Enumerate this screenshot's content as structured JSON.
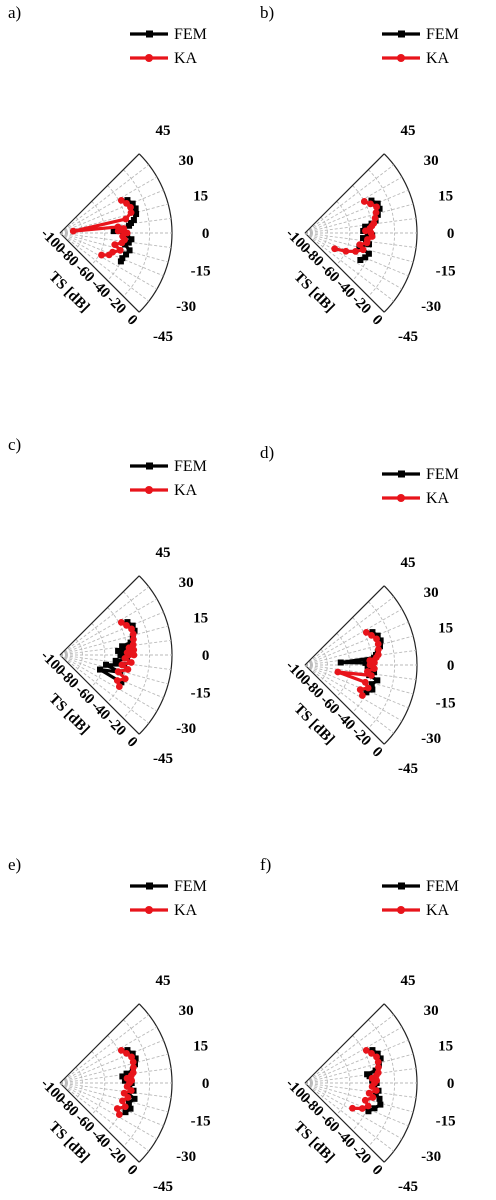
{
  "figure": {
    "panels": [
      {
        "label": "a)"
      },
      {
        "label": "b)"
      },
      {
        "label": "c)"
      },
      {
        "label": "d)"
      },
      {
        "label": "e)"
      },
      {
        "label": "f)"
      }
    ]
  },
  "chart_data": {
    "type": "polar-line",
    "radial_axis": {
      "label": "TS [dB]",
      "range": [
        -100,
        0
      ],
      "ticks": [
        "-100",
        "-80",
        "-60",
        "-40",
        "-20",
        "0"
      ]
    },
    "angular_axis": {
      "unit": "degrees",
      "range": [
        -45,
        45
      ],
      "ticks": [
        "45",
        "30",
        "15",
        "0",
        "-15",
        "-30",
        "-45"
      ]
    },
    "legend_placement": "top-right",
    "series_colors": {
      "FEM": "#000000",
      "KA": "#e8141b"
    },
    "panels": [
      {
        "label": "a)",
        "series": [
          {
            "name": "FEM",
            "angle": [
              -25,
              -22,
              -18,
              -14,
              -10,
              -8,
              -5,
              -2,
              0,
              2,
              4,
              6,
              8,
              10,
              14,
              18,
              22,
              26
            ],
            "ts": [
              -40,
              -40,
              -38,
              -36,
              -41,
              -38,
              -36,
              -40,
              -42,
              -52,
              -44,
              -38,
              -36,
              -33,
              -30,
              -29,
              -30,
              -33
            ]
          },
          {
            "name": "KA",
            "angle": [
              -28,
              -24,
              -20,
              -16,
              -12,
              -9,
              -6,
              -3,
              0,
              2,
              4,
              6,
              8,
              12,
              16,
              20,
              24,
              28
            ],
            "ts": [
              -58,
              -52,
              -50,
              -44,
              -50,
              -44,
              -42,
              -44,
              -40,
              -48,
              -43,
              -48,
              -88,
              -40,
              -34,
              -33,
              -35,
              -38
            ]
          }
        ]
      },
      {
        "label": "b)",
        "series": [
          {
            "name": "FEM",
            "angle": [
              -26,
              -22,
              -18,
              -14,
              -10,
              -8,
              -5,
              -2,
              0,
              2,
              4,
              6,
              8,
              10,
              14,
              18,
              22,
              26
            ],
            "ts": [
              -45,
              -42,
              -40,
              -50,
              -42,
              -45,
              -48,
              -40,
              -44,
              -48,
              -42,
              -46,
              -40,
              -36,
              -33,
              -30,
              -30,
              -34
            ]
          },
          {
            "name": "KA",
            "angle": [
              -28,
              -24,
              -20,
              -16,
              -12,
              -9,
              -6,
              -3,
              0,
              2,
              4,
              6,
              8,
              12,
              16,
              20,
              24,
              28
            ],
            "ts": [
              -70,
              -60,
              -52,
              -46,
              -50,
              -44,
              -44,
              -40,
              -41,
              -46,
              -42,
              -40,
              -38,
              -36,
              -34,
              -32,
              -36,
              -40
            ]
          }
        ]
      },
      {
        "label": "c)",
        "series": [
          {
            "name": "FEM",
            "angle": [
              -24,
              -20,
              -16,
              -12,
              -9,
              -6,
              -3,
              0,
              2,
              4,
              6,
              8,
              10,
              14,
              18,
              22,
              26
            ],
            "ts": [
              -40,
              -62,
              -44,
              -58,
              -42,
              -50,
              -40,
              -46,
              -38,
              -48,
              -40,
              -44,
              -36,
              -33,
              -30,
              -30,
              -33
            ]
          },
          {
            "name": "KA",
            "angle": [
              -28,
              -24,
              -20,
              -16,
              -12,
              -9,
              -6,
              -3,
              0,
              2,
              4,
              6,
              8,
              12,
              16,
              20,
              24,
              28
            ],
            "ts": [
              -40,
              -44,
              -38,
              -46,
              -38,
              -44,
              -36,
              -42,
              -34,
              -40,
              -34,
              -38,
              -34,
              -33,
              -32,
              -32,
              -35,
              -38
            ]
          }
        ]
      },
      {
        "label": "d)",
        "series": [
          {
            "name": "FEM",
            "angle": [
              -24,
              -20,
              -16,
              -12,
              -9,
              -6,
              -3,
              0,
              2,
              4,
              6,
              8,
              10,
              14,
              18,
              22,
              26
            ],
            "ts": [
              -40,
              -36,
              -38,
              -34,
              -42,
              -38,
              -44,
              -40,
              -46,
              -68,
              -38,
              -36,
              -34,
              -31,
              -29,
              -30,
              -33
            ]
          },
          {
            "name": "KA",
            "angle": [
              -28,
              -24,
              -20,
              -16,
              -12,
              -9,
              -6,
              -3,
              0,
              2,
              4,
              6,
              8,
              12,
              16,
              20,
              24,
              28
            ],
            "ts": [
              -42,
              -46,
              -40,
              -44,
              -70,
              -40,
              -44,
              -38,
              -42,
              -38,
              -42,
              -36,
              -34,
              -33,
              -32,
              -32,
              -35,
              -38
            ]
          }
        ]
      },
      {
        "label": "e)",
        "series": [
          {
            "name": "FEM",
            "angle": [
              -24,
              -20,
              -16,
              -12,
              -9,
              -6,
              -3,
              0,
              2,
              4,
              6,
              8,
              10,
              14,
              18,
              22,
              26
            ],
            "ts": [
              -36,
              -33,
              -36,
              -32,
              -38,
              -34,
              -38,
              -36,
              -42,
              -38,
              -44,
              -40,
              -34,
              -31,
              -29,
              -30,
              -33
            ]
          },
          {
            "name": "KA",
            "angle": [
              -28,
              -24,
              -20,
              -16,
              -12,
              -9,
              -6,
              -3,
              0,
              2,
              4,
              6,
              8,
              12,
              16,
              20,
              24,
              28
            ],
            "ts": [
              -40,
              -44,
              -38,
              -42,
              -38,
              -42,
              -36,
              -40,
              -38,
              -36,
              -40,
              -36,
              -34,
              -33,
              -32,
              -32,
              -35,
              -38
            ]
          }
        ]
      },
      {
        "label": "f)",
        "series": [
          {
            "name": "FEM",
            "angle": [
              -24,
              -20,
              -16,
              -12,
              -9,
              -6,
              -3,
              0,
              2,
              4,
              6,
              8,
              10,
              14,
              18,
              22,
              26
            ],
            "ts": [
              -38,
              -34,
              -30,
              -32,
              -36,
              -34,
              -38,
              -36,
              -40,
              -38,
              -42,
              -44,
              -36,
              -32,
              -29,
              -30,
              -33
            ]
          },
          {
            "name": "KA",
            "angle": [
              -28,
              -24,
              -20,
              -16,
              -12,
              -9,
              -6,
              -3,
              0,
              2,
              4,
              6,
              8,
              12,
              16,
              20,
              24,
              28
            ],
            "ts": [
              -52,
              -44,
              -40,
              -44,
              -38,
              -42,
              -36,
              -40,
              -38,
              -36,
              -40,
              -36,
              -34,
              -33,
              -32,
              -32,
              -35,
              -38
            ]
          }
        ]
      }
    ]
  }
}
